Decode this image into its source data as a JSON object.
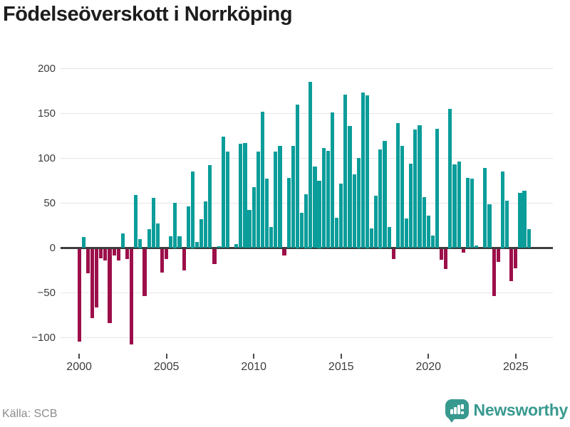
{
  "title": "Födelseöverskott i Norrköping",
  "source": "Källa: SCB",
  "branding": {
    "name": "Newsworthy",
    "icon": "newsworthy-speech-bubble-chart-icon"
  },
  "colors": {
    "positive": "#0a9d9a",
    "negative": "#9c0f4a",
    "grid": "#e6e6e6",
    "zero_line": "#3d3d3d",
    "axis_text": "#3d3d3d",
    "title_text": "#1d1d1d",
    "source_text": "#8c8c8c",
    "brand": "#38998f"
  },
  "chart_data": {
    "type": "bar",
    "title": "Födelseöverskott i Norrköping",
    "xlabel": "",
    "ylabel": "",
    "frequency": "quarterly",
    "grid": "horizontal",
    "legend": "none",
    "ylim": [
      -120,
      215
    ],
    "y_tick_values": [
      200,
      150,
      100,
      50,
      0,
      -50,
      -100
    ],
    "y_tick_labels": [
      "200",
      "150",
      "100",
      "50",
      "0",
      "−50",
      "−100"
    ],
    "x_tick_years": [
      2000,
      2005,
      2010,
      2015,
      2020,
      2025
    ],
    "x_tick_labels": [
      "2000",
      "2005",
      "2010",
      "2015",
      "2020",
      "2025"
    ],
    "categories": [
      "2000Q1",
      "2000Q2",
      "2000Q3",
      "2000Q4",
      "2001Q1",
      "2001Q2",
      "2001Q3",
      "2001Q4",
      "2002Q1",
      "2002Q2",
      "2002Q3",
      "2002Q4",
      "2003Q1",
      "2003Q2",
      "2003Q3",
      "2003Q4",
      "2004Q1",
      "2004Q2",
      "2004Q3",
      "2004Q4",
      "2005Q1",
      "2005Q2",
      "2005Q3",
      "2005Q4",
      "2006Q1",
      "2006Q2",
      "2006Q3",
      "2006Q4",
      "2007Q1",
      "2007Q2",
      "2007Q3",
      "2007Q4",
      "2008Q1",
      "2008Q2",
      "2008Q3",
      "2008Q4",
      "2009Q1",
      "2009Q2",
      "2009Q3",
      "2009Q4",
      "2010Q1",
      "2010Q2",
      "2010Q3",
      "2010Q4",
      "2011Q1",
      "2011Q2",
      "2011Q3",
      "2011Q4",
      "2012Q1",
      "2012Q2",
      "2012Q3",
      "2012Q4",
      "2013Q1",
      "2013Q2",
      "2013Q3",
      "2013Q4",
      "2014Q1",
      "2014Q2",
      "2014Q3",
      "2014Q4",
      "2015Q1",
      "2015Q2",
      "2015Q3",
      "2015Q4",
      "2016Q1",
      "2016Q2",
      "2016Q3",
      "2016Q4",
      "2017Q1",
      "2017Q2",
      "2017Q3",
      "2017Q4",
      "2018Q1",
      "2018Q2",
      "2018Q3",
      "2018Q4",
      "2019Q1",
      "2019Q2",
      "2019Q3",
      "2019Q4",
      "2020Q1",
      "2020Q2",
      "2020Q3",
      "2020Q4",
      "2021Q1",
      "2021Q2",
      "2021Q3",
      "2021Q4",
      "2022Q1",
      "2022Q2",
      "2022Q3",
      "2022Q4",
      "2023Q1",
      "2023Q2",
      "2023Q3",
      "2023Q4",
      "2024Q1",
      "2024Q2",
      "2024Q3",
      "2024Q4",
      "2025Q1",
      "2025Q2",
      "2025Q3",
      "2025Q4"
    ],
    "series": [
      {
        "name": "Födelseöverskott",
        "values": [
          -103,
          12,
          -27,
          -77,
          -65,
          -10,
          -13,
          -82,
          -7,
          -13,
          16,
          -11,
          -106,
          59,
          10,
          -52,
          21,
          56,
          27,
          -26,
          -11,
          13,
          50,
          13,
          -24,
          46,
          85,
          7,
          32,
          52,
          92,
          -17,
          2,
          124,
          107,
          0,
          4,
          116,
          117,
          42,
          68,
          107,
          152,
          77,
          23,
          107,
          114,
          -7,
          78,
          114,
          160,
          39,
          60,
          185,
          91,
          75,
          111,
          108,
          151,
          34,
          72,
          171,
          136,
          82,
          100,
          173,
          170,
          22,
          58,
          110,
          119,
          23,
          -11,
          139,
          114,
          33,
          94,
          132,
          137,
          57,
          36,
          14,
          133,
          -12,
          -22,
          155,
          93,
          96,
          -4,
          78,
          77,
          3,
          0,
          89,
          49,
          -52,
          -14,
          85,
          53,
          -36,
          -21,
          61,
          64,
          21
        ]
      }
    ]
  }
}
